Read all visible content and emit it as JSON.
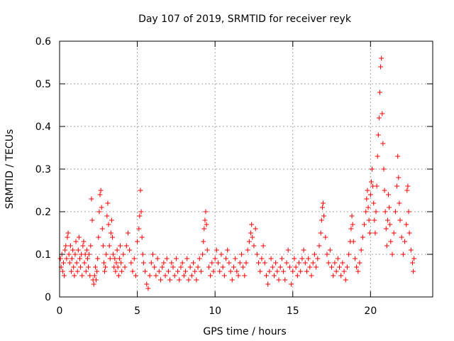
{
  "chart_data": {
    "type": "scatter",
    "title": "Day 107 of 2019, SRMTID for receiver reyk",
    "xlabel": "GPS time / hours",
    "ylabel": "SRMTID / TECUs",
    "xlim": [
      0,
      24
    ],
    "ylim": [
      0,
      0.6
    ],
    "x_ticks": [
      0,
      5,
      10,
      15,
      20
    ],
    "x_tick_labels": [
      "0",
      "5",
      "10",
      "15",
      "20"
    ],
    "y_ticks": [
      0,
      0.1,
      0.2,
      0.3,
      0.4,
      0.5,
      0.6
    ],
    "y_tick_labels": [
      "0",
      "0.1",
      "0.2",
      "0.3",
      "0.4",
      "0.5",
      "0.6"
    ],
    "grid": true,
    "marker": "plus",
    "series": [
      {
        "name": "SRMTID",
        "color": "#ff0000",
        "points": [
          [
            0.05,
            0.09
          ],
          [
            0.1,
            0.07
          ],
          [
            0.15,
            0.1
          ],
          [
            0.2,
            0.06
          ],
          [
            0.25,
            0.08
          ],
          [
            0.3,
            0.05
          ],
          [
            0.35,
            0.11
          ],
          [
            0.4,
            0.12
          ],
          [
            0.45,
            0.09
          ],
          [
            0.5,
            0.14
          ],
          [
            0.55,
            0.15
          ],
          [
            0.6,
            0.1
          ],
          [
            0.65,
            0.08
          ],
          [
            0.7,
            0.12
          ],
          [
            0.75,
            0.06
          ],
          [
            0.8,
            0.09
          ],
          [
            0.85,
            0.11
          ],
          [
            0.9,
            0.07
          ],
          [
            0.95,
            0.05
          ],
          [
            1.0,
            0.1
          ],
          [
            1.05,
            0.13
          ],
          [
            1.1,
            0.08
          ],
          [
            1.15,
            0.06
          ],
          [
            1.2,
            0.11
          ],
          [
            1.25,
            0.14
          ],
          [
            1.3,
            0.09
          ],
          [
            1.35,
            0.07
          ],
          [
            1.4,
            0.1
          ],
          [
            1.45,
            0.05
          ],
          [
            1.5,
            0.12
          ],
          [
            1.55,
            0.13
          ],
          [
            1.6,
            0.08
          ],
          [
            1.65,
            0.1
          ],
          [
            1.7,
            0.06
          ],
          [
            1.75,
            0.11
          ],
          [
            1.8,
            0.09
          ],
          [
            1.85,
            0.07
          ],
          [
            1.9,
            0.1
          ],
          [
            1.95,
            0.05
          ],
          [
            2.0,
            0.12
          ],
          [
            2.05,
            0.23
          ],
          [
            2.1,
            0.18
          ],
          [
            2.15,
            0.04
          ],
          [
            2.2,
            0.03
          ],
          [
            2.25,
            0.05
          ],
          [
            2.3,
            0.07
          ],
          [
            2.35,
            0.04
          ],
          [
            2.4,
            0.06
          ],
          [
            2.45,
            0.09
          ],
          [
            2.5,
            0.14
          ],
          [
            2.55,
            0.2
          ],
          [
            2.6,
            0.24
          ],
          [
            2.65,
            0.25
          ],
          [
            2.7,
            0.21
          ],
          [
            2.75,
            0.16
          ],
          [
            2.8,
            0.12
          ],
          [
            2.85,
            0.08
          ],
          [
            2.9,
            0.06
          ],
          [
            2.95,
            0.07
          ],
          [
            3.0,
            0.1
          ],
          [
            3.05,
            0.19
          ],
          [
            3.1,
            0.22
          ],
          [
            3.15,
            0.17
          ],
          [
            3.2,
            0.12
          ],
          [
            3.25,
            0.09
          ],
          [
            3.3,
            0.15
          ],
          [
            3.35,
            0.18
          ],
          [
            3.4,
            0.14
          ],
          [
            3.45,
            0.1
          ],
          [
            3.5,
            0.07
          ],
          [
            3.55,
            0.09
          ],
          [
            3.6,
            0.06
          ],
          [
            3.65,
            0.08
          ],
          [
            3.7,
            0.11
          ],
          [
            3.75,
            0.07
          ],
          [
            3.8,
            0.05
          ],
          [
            3.85,
            0.09
          ],
          [
            3.9,
            0.12
          ],
          [
            3.95,
            0.08
          ],
          [
            4.0,
            0.06
          ],
          [
            4.1,
            0.1
          ],
          [
            4.2,
            0.07
          ],
          [
            4.3,
            0.12
          ],
          [
            4.4,
            0.15
          ],
          [
            4.5,
            0.11
          ],
          [
            4.6,
            0.08
          ],
          [
            4.7,
            0.06
          ],
          [
            4.8,
            0.09
          ],
          [
            4.9,
            0.05
          ],
          [
            5.0,
            0.13
          ],
          [
            5.1,
            0.16
          ],
          [
            5.15,
            0.19
          ],
          [
            5.2,
            0.25
          ],
          [
            5.25,
            0.2
          ],
          [
            5.3,
            0.14
          ],
          [
            5.35,
            0.1
          ],
          [
            5.4,
            0.08
          ],
          [
            5.5,
            0.06
          ],
          [
            5.6,
            0.03
          ],
          [
            5.7,
            0.02
          ],
          [
            5.8,
            0.05
          ],
          [
            5.9,
            0.08
          ],
          [
            6.0,
            0.1
          ],
          [
            6.1,
            0.07
          ],
          [
            6.2,
            0.05
          ],
          [
            6.3,
            0.09
          ],
          [
            6.4,
            0.06
          ],
          [
            6.5,
            0.04
          ],
          [
            6.6,
            0.07
          ],
          [
            6.7,
            0.08
          ],
          [
            6.8,
            0.05
          ],
          [
            6.9,
            0.09
          ],
          [
            7.0,
            0.06
          ],
          [
            7.1,
            0.04
          ],
          [
            7.2,
            0.08
          ],
          [
            7.3,
            0.07
          ],
          [
            7.4,
            0.05
          ],
          [
            7.5,
            0.09
          ],
          [
            7.6,
            0.06
          ],
          [
            7.7,
            0.04
          ],
          [
            7.8,
            0.07
          ],
          [
            7.9,
            0.08
          ],
          [
            8.0,
            0.05
          ],
          [
            8.1,
            0.06
          ],
          [
            8.2,
            0.09
          ],
          [
            8.3,
            0.04
          ],
          [
            8.4,
            0.07
          ],
          [
            8.5,
            0.05
          ],
          [
            8.6,
            0.08
          ],
          [
            8.7,
            0.06
          ],
          [
            8.8,
            0.04
          ],
          [
            8.9,
            0.07
          ],
          [
            9.0,
            0.09
          ],
          [
            9.1,
            0.06
          ],
          [
            9.2,
            0.1
          ],
          [
            9.25,
            0.13
          ],
          [
            9.3,
            0.16
          ],
          [
            9.35,
            0.18
          ],
          [
            9.4,
            0.2
          ],
          [
            9.45,
            0.17
          ],
          [
            9.5,
            0.11
          ],
          [
            9.6,
            0.07
          ],
          [
            9.7,
            0.05
          ],
          [
            9.8,
            0.08
          ],
          [
            9.9,
            0.06
          ],
          [
            10.0,
            0.09
          ],
          [
            10.1,
            0.11
          ],
          [
            10.2,
            0.08
          ],
          [
            10.3,
            0.06
          ],
          [
            10.4,
            0.1
          ],
          [
            10.5,
            0.07
          ],
          [
            10.6,
            0.05
          ],
          [
            10.7,
            0.09
          ],
          [
            10.8,
            0.11
          ],
          [
            10.9,
            0.08
          ],
          [
            11.0,
            0.06
          ],
          [
            11.1,
            0.04
          ],
          [
            11.2,
            0.07
          ],
          [
            11.3,
            0.09
          ],
          [
            11.4,
            0.06
          ],
          [
            11.5,
            0.05
          ],
          [
            11.6,
            0.08
          ],
          [
            11.7,
            0.1
          ],
          [
            11.8,
            0.07
          ],
          [
            11.9,
            0.05
          ],
          [
            12.0,
            0.08
          ],
          [
            12.1,
            0.11
          ],
          [
            12.2,
            0.13
          ],
          [
            12.3,
            0.15
          ],
          [
            12.35,
            0.17
          ],
          [
            12.4,
            0.14
          ],
          [
            12.5,
            0.12
          ],
          [
            12.6,
            0.16
          ],
          [
            12.7,
            0.1
          ],
          [
            12.8,
            0.08
          ],
          [
            12.9,
            0.06
          ],
          [
            13.0,
            0.09
          ],
          [
            13.1,
            0.12
          ],
          [
            13.2,
            0.08
          ],
          [
            13.3,
            0.05
          ],
          [
            13.4,
            0.03
          ],
          [
            13.5,
            0.06
          ],
          [
            13.6,
            0.09
          ],
          [
            13.7,
            0.07
          ],
          [
            13.8,
            0.05
          ],
          [
            13.9,
            0.08
          ],
          [
            14.0,
            0.06
          ],
          [
            14.1,
            0.04
          ],
          [
            14.2,
            0.07
          ],
          [
            14.3,
            0.09
          ],
          [
            14.4,
            0.06
          ],
          [
            14.5,
            0.04
          ],
          [
            14.6,
            0.08
          ],
          [
            14.7,
            0.11
          ],
          [
            14.8,
            0.07
          ],
          [
            14.9,
            0.03
          ],
          [
            15.0,
            0.06
          ],
          [
            15.1,
            0.09
          ],
          [
            15.2,
            0.07
          ],
          [
            15.3,
            0.05
          ],
          [
            15.4,
            0.08
          ],
          [
            15.5,
            0.06
          ],
          [
            15.6,
            0.09
          ],
          [
            15.7,
            0.11
          ],
          [
            15.8,
            0.08
          ],
          [
            15.9,
            0.06
          ],
          [
            16.0,
            0.09
          ],
          [
            16.1,
            0.07
          ],
          [
            16.2,
            0.05
          ],
          [
            16.3,
            0.08
          ],
          [
            16.4,
            0.1
          ],
          [
            16.5,
            0.07
          ],
          [
            16.6,
            0.09
          ],
          [
            16.7,
            0.12
          ],
          [
            16.8,
            0.15
          ],
          [
            16.85,
            0.18
          ],
          [
            16.9,
            0.21
          ],
          [
            16.95,
            0.22
          ],
          [
            17.0,
            0.19
          ],
          [
            17.1,
            0.14
          ],
          [
            17.2,
            0.1
          ],
          [
            17.3,
            0.08
          ],
          [
            17.4,
            0.11
          ],
          [
            17.5,
            0.07
          ],
          [
            17.6,
            0.05
          ],
          [
            17.7,
            0.08
          ],
          [
            17.8,
            0.06
          ],
          [
            17.9,
            0.09
          ],
          [
            18.0,
            0.07
          ],
          [
            18.1,
            0.05
          ],
          [
            18.2,
            0.08
          ],
          [
            18.3,
            0.06
          ],
          [
            18.4,
            0.04
          ],
          [
            18.5,
            0.07
          ],
          [
            18.6,
            0.1
          ],
          [
            18.7,
            0.13
          ],
          [
            18.75,
            0.16
          ],
          [
            18.8,
            0.19
          ],
          [
            18.85,
            0.17
          ],
          [
            18.9,
            0.13
          ],
          [
            19.0,
            0.09
          ],
          [
            19.1,
            0.07
          ],
          [
            19.2,
            0.06
          ],
          [
            19.3,
            0.08
          ],
          [
            19.4,
            0.11
          ],
          [
            19.5,
            0.14
          ],
          [
            19.6,
            0.17
          ],
          [
            19.7,
            0.2
          ],
          [
            19.75,
            0.23
          ],
          [
            19.8,
            0.25
          ],
          [
            19.85,
            0.21
          ],
          [
            19.9,
            0.18
          ],
          [
            19.95,
            0.15
          ],
          [
            20.0,
            0.24
          ],
          [
            20.05,
            0.27
          ],
          [
            20.1,
            0.3
          ],
          [
            20.15,
            0.26
          ],
          [
            20.2,
            0.22
          ],
          [
            20.25,
            0.18
          ],
          [
            20.3,
            0.15
          ],
          [
            20.35,
            0.2
          ],
          [
            20.4,
            0.26
          ],
          [
            20.45,
            0.33
          ],
          [
            20.5,
            0.38
          ],
          [
            20.55,
            0.42
          ],
          [
            20.6,
            0.48
          ],
          [
            20.65,
            0.54
          ],
          [
            20.7,
            0.56
          ],
          [
            20.75,
            0.43
          ],
          [
            20.8,
            0.36
          ],
          [
            20.85,
            0.3
          ],
          [
            20.9,
            0.25
          ],
          [
            20.95,
            0.2
          ],
          [
            21.0,
            0.16
          ],
          [
            21.05,
            0.12
          ],
          [
            21.1,
            0.18
          ],
          [
            21.15,
            0.24
          ],
          [
            21.2,
            0.21
          ],
          [
            21.25,
            0.17
          ],
          [
            21.3,
            0.13
          ],
          [
            21.4,
            0.1
          ],
          [
            21.5,
            0.15
          ],
          [
            21.6,
            0.2
          ],
          [
            21.7,
            0.26
          ],
          [
            21.75,
            0.33
          ],
          [
            21.8,
            0.28
          ],
          [
            21.85,
            0.22
          ],
          [
            21.9,
            0.18
          ],
          [
            22.0,
            0.14
          ],
          [
            22.1,
            0.1
          ],
          [
            22.2,
            0.13
          ],
          [
            22.3,
            0.17
          ],
          [
            22.35,
            0.25
          ],
          [
            22.4,
            0.26
          ],
          [
            22.45,
            0.2
          ],
          [
            22.5,
            0.15
          ],
          [
            22.6,
            0.11
          ],
          [
            22.7,
            0.08
          ],
          [
            22.75,
            0.06
          ],
          [
            22.8,
            0.09
          ]
        ]
      }
    ]
  }
}
